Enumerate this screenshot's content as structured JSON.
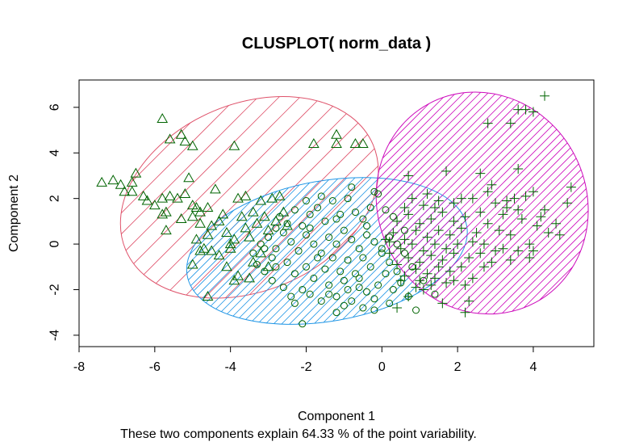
{
  "chart_data": {
    "type": "scatter",
    "title": "CLUSPLOT( norm_data )",
    "xlabel": "Component 1",
    "ylabel": "Component 2",
    "subtitle": "These two components explain 64.33 % of the point variability.",
    "xlim": [
      -8,
      5.6
    ],
    "ylim": [
      -4.5,
      7.2
    ],
    "xticks": [
      -8,
      -6,
      -4,
      -2,
      0,
      2,
      4
    ],
    "yticks": [
      -4,
      -2,
      0,
      2,
      4,
      6
    ],
    "grid": false,
    "point_color": "#006400",
    "clusters": [
      {
        "id": 1,
        "marker": "triangle",
        "ellipse_color": "#DF536B",
        "ellipse": {
          "cx": -3.5,
          "cy": 2.05,
          "rx": 3.55,
          "ry": 4.1,
          "angle_deg": 23
        },
        "points": [
          [
            -5.8,
            5.5
          ],
          [
            -5.6,
            4.6
          ],
          [
            -5.3,
            4.8
          ],
          [
            -5.2,
            4.5
          ],
          [
            -5.0,
            4.3
          ],
          [
            -3.9,
            4.3
          ],
          [
            -1.8,
            4.4
          ],
          [
            -1.2,
            4.8
          ],
          [
            -1.2,
            4.4
          ],
          [
            -0.7,
            4.4
          ],
          [
            -0.5,
            4.4
          ],
          [
            -7.4,
            2.7
          ],
          [
            -7.1,
            2.8
          ],
          [
            -6.9,
            2.6
          ],
          [
            -6.8,
            2.3
          ],
          [
            -6.5,
            3.1
          ],
          [
            -6.6,
            2.7
          ],
          [
            -6.6,
            2.3
          ],
          [
            -6.3,
            2.1
          ],
          [
            -6.2,
            1.9
          ],
          [
            -6.0,
            1.7
          ],
          [
            -5.8,
            2.0
          ],
          [
            -5.8,
            1.3
          ],
          [
            -5.6,
            2.1
          ],
          [
            -5.4,
            2.0
          ],
          [
            -5.2,
            2.2
          ],
          [
            -5.1,
            2.9
          ],
          [
            -5.0,
            1.7
          ],
          [
            -4.8,
            1.4
          ],
          [
            -4.6,
            1.6
          ],
          [
            -4.4,
            2.4
          ],
          [
            -5.7,
            0.6
          ],
          [
            -5.3,
            1.1
          ],
          [
            -5.0,
            1.2
          ],
          [
            -4.8,
            0.9
          ],
          [
            -4.6,
            0.4
          ],
          [
            -4.5,
            0.8
          ],
          [
            -4.3,
            1.0
          ],
          [
            -4.1,
            0.5
          ],
          [
            -4.0,
            0.0
          ],
          [
            -3.9,
            0.2
          ],
          [
            -3.8,
            2.0
          ],
          [
            -3.7,
            1.2
          ],
          [
            -3.6,
            0.7
          ],
          [
            -3.5,
            0.3
          ],
          [
            -3.4,
            1.4
          ],
          [
            -3.3,
            0.9
          ],
          [
            -3.2,
            1.9
          ],
          [
            -3.1,
            1.2
          ],
          [
            -3.0,
            0.6
          ],
          [
            -2.9,
            2.0
          ],
          [
            -2.8,
            1.0
          ],
          [
            -2.7,
            2.1
          ],
          [
            -2.6,
            1.4
          ],
          [
            -2.5,
            0.8
          ],
          [
            -4.9,
            0.2
          ],
          [
            -4.7,
            -0.2
          ],
          [
            -4.5,
            -0.3
          ],
          [
            -4.3,
            -0.5
          ],
          [
            -4.1,
            -1.0
          ],
          [
            -3.9,
            -1.6
          ],
          [
            -3.8,
            -1.4
          ],
          [
            -3.5,
            -1.5
          ],
          [
            -3.4,
            -0.8
          ],
          [
            -3.2,
            -0.4
          ],
          [
            -3.0,
            -1.0
          ],
          [
            -5.0,
            -0.9
          ],
          [
            -4.8,
            -0.3
          ],
          [
            -4.6,
            -2.3
          ],
          [
            -4.0,
            -0.2
          ],
          [
            -5.7,
            1.4
          ],
          [
            -4.9,
            1.6
          ],
          [
            -4.2,
            1.3
          ],
          [
            -3.6,
            2.1
          ]
        ]
      },
      {
        "id": 2,
        "marker": "circle",
        "ellipse_color": "#2297E6",
        "ellipse": {
          "cx": -1.45,
          "cy": -0.3,
          "rx": 3.75,
          "ry": 3.08,
          "angle_deg": 10
        },
        "points": [
          [
            -2.1,
            -3.5
          ],
          [
            -1.2,
            -3.0
          ],
          [
            -1.0,
            -2.7
          ],
          [
            -0.8,
            -2.5
          ],
          [
            -0.5,
            -2.8
          ],
          [
            -0.2,
            -2.9
          ],
          [
            0.2,
            -2.6
          ],
          [
            -2.3,
            -2.6
          ],
          [
            -1.9,
            -2.2
          ],
          [
            -1.6,
            -2.5
          ],
          [
            -1.4,
            -2.2
          ],
          [
            -1.2,
            -2.3
          ],
          [
            -0.9,
            -2.0
          ],
          [
            -0.6,
            -1.9
          ],
          [
            -0.4,
            -2.1
          ],
          [
            -0.1,
            -1.8
          ],
          [
            0.3,
            -2.0
          ],
          [
            0.5,
            -1.7
          ],
          [
            -2.6,
            -1.9
          ],
          [
            -2.9,
            -1.6
          ],
          [
            -3.1,
            -1.2
          ],
          [
            -2.8,
            -1.0
          ],
          [
            -2.5,
            -0.8
          ],
          [
            -2.3,
            -1.3
          ],
          [
            -2.0,
            -1.0
          ],
          [
            -1.8,
            -1.5
          ],
          [
            -1.5,
            -1.1
          ],
          [
            -1.3,
            -0.6
          ],
          [
            -1.1,
            -1.2
          ],
          [
            -0.9,
            -0.7
          ],
          [
            -0.7,
            -1.3
          ],
          [
            -0.5,
            -0.6
          ],
          [
            -0.3,
            -1.0
          ],
          [
            0.0,
            -0.4
          ],
          [
            0.2,
            -0.8
          ],
          [
            0.4,
            -1.2
          ],
          [
            -3.4,
            -0.4
          ],
          [
            -3.2,
            0.0
          ],
          [
            -3.0,
            0.3
          ],
          [
            -2.8,
            -0.2
          ],
          [
            -2.6,
            0.5
          ],
          [
            -2.4,
            0.1
          ],
          [
            -2.2,
            -0.3
          ],
          [
            -2.0,
            0.4
          ],
          [
            -1.8,
            0.0
          ],
          [
            -1.6,
            -0.4
          ],
          [
            -1.4,
            0.3
          ],
          [
            -1.2,
            0.0
          ],
          [
            -1.0,
            0.6
          ],
          [
            -0.8,
            0.2
          ],
          [
            -0.6,
            -0.2
          ],
          [
            -0.4,
            0.4
          ],
          [
            -0.2,
            0.1
          ],
          [
            0.0,
            -0.2
          ],
          [
            0.2,
            0.3
          ],
          [
            0.4,
            0.0
          ],
          [
            0.6,
            -0.4
          ],
          [
            -2.7,
            1.2
          ],
          [
            -2.5,
            0.9
          ],
          [
            -2.3,
            1.5
          ],
          [
            -2.1,
            0.8
          ],
          [
            -1.9,
            1.3
          ],
          [
            -1.7,
            1.6
          ],
          [
            -1.5,
            1.0
          ],
          [
            -1.3,
            1.9
          ],
          [
            -1.1,
            1.3
          ],
          [
            -0.9,
            2.0
          ],
          [
            -0.7,
            1.4
          ],
          [
            -0.5,
            1.1
          ],
          [
            -0.3,
            1.6
          ],
          [
            -0.1,
            2.2
          ],
          [
            0.1,
            1.5
          ],
          [
            0.3,
            1.2
          ],
          [
            -0.8,
            2.5
          ],
          [
            -0.2,
            2.3
          ],
          [
            -1.2,
            1.1
          ],
          [
            -0.6,
            -1.5
          ],
          [
            0.1,
            -1.3
          ],
          [
            -2.1,
            -2.0
          ],
          [
            -1.7,
            -0.6
          ],
          [
            -2.9,
            -0.6
          ],
          [
            -3.3,
            -0.9
          ],
          [
            -1.0,
            -1.6
          ],
          [
            0.7,
            -2.3
          ],
          [
            0.9,
            -2.9
          ],
          [
            -1.4,
            -1.8
          ],
          [
            -0.2,
            -2.4
          ],
          [
            -2.4,
            -2.3
          ],
          [
            -1.9,
            0.7
          ],
          [
            -0.4,
            0.8
          ],
          [
            0.6,
            0.6
          ],
          [
            -1.6,
            2.1
          ],
          [
            -2.0,
            1.9
          ],
          [
            -2.8,
            0.7
          ],
          [
            -3.1,
            -0.2
          ],
          [
            0.8,
            -1.0
          ],
          [
            1.1,
            -1.6
          ],
          [
            1.4,
            -2.2
          ]
        ]
      },
      {
        "id": 3,
        "marker": "plus",
        "ellipse_color": "#CD0BBC",
        "ellipse": {
          "cx": 2.65,
          "cy": 1.8,
          "rx": 2.75,
          "ry": 4.95,
          "angle_deg": 28
        },
        "points": [
          [
            4.3,
            6.5
          ],
          [
            3.8,
            5.9
          ],
          [
            4.0,
            5.8
          ],
          [
            3.6,
            5.9
          ],
          [
            2.8,
            5.3
          ],
          [
            3.4,
            5.3
          ],
          [
            3.6,
            3.3
          ],
          [
            2.6,
            3.1
          ],
          [
            1.7,
            3.2
          ],
          [
            0.7,
            3.0
          ],
          [
            5.0,
            2.5
          ],
          [
            4.9,
            1.8
          ],
          [
            1.2,
            2.2
          ],
          [
            2.1,
            2.0
          ],
          [
            2.8,
            2.3
          ],
          [
            3.5,
            2.0
          ],
          [
            4.0,
            2.3
          ],
          [
            4.3,
            1.5
          ],
          [
            4.4,
            0.5
          ],
          [
            3.9,
            0.0
          ],
          [
            4.0,
            -0.3
          ],
          [
            3.4,
            -0.7
          ],
          [
            3.6,
            -0.3
          ],
          [
            2.9,
            -0.8
          ],
          [
            2.4,
            -1.5
          ],
          [
            2.3,
            -2.5
          ],
          [
            2.2,
            -3.0
          ],
          [
            1.6,
            -2.6
          ],
          [
            1.3,
            -1.8
          ],
          [
            0.9,
            -1.9
          ],
          [
            0.7,
            -2.3
          ],
          [
            0.4,
            -2.8
          ],
          [
            3.0,
            1.8
          ],
          [
            3.3,
            1.6
          ],
          [
            3.7,
            1.1
          ],
          [
            3.2,
            1.3
          ],
          [
            2.6,
            1.4
          ],
          [
            2.2,
            1.2
          ],
          [
            1.9,
            1.0
          ],
          [
            1.6,
            1.4
          ],
          [
            1.3,
            1.1
          ],
          [
            1.0,
            0.9
          ],
          [
            0.7,
            1.3
          ],
          [
            0.4,
            1.0
          ],
          [
            2.8,
            0.9
          ],
          [
            3.1,
            0.6
          ],
          [
            3.4,
            0.4
          ],
          [
            2.5,
            0.5
          ],
          [
            2.1,
            0.7
          ],
          [
            1.8,
            0.4
          ],
          [
            1.5,
            0.6
          ],
          [
            1.2,
            0.3
          ],
          [
            0.9,
            0.6
          ],
          [
            0.6,
            0.2
          ],
          [
            0.3,
            0.5
          ],
          [
            2.7,
            0.0
          ],
          [
            2.4,
            0.1
          ],
          [
            2.0,
            0.0
          ],
          [
            1.7,
            -0.2
          ],
          [
            1.4,
            0.0
          ],
          [
            1.1,
            -0.3
          ],
          [
            0.8,
            0.0
          ],
          [
            0.5,
            -0.2
          ],
          [
            0.2,
            0.1
          ],
          [
            2.6,
            -0.4
          ],
          [
            2.3,
            -0.6
          ],
          [
            1.9,
            -0.4
          ],
          [
            1.6,
            -0.7
          ],
          [
            1.3,
            -0.5
          ],
          [
            1.0,
            -0.8
          ],
          [
            0.7,
            -0.6
          ],
          [
            0.4,
            -0.9
          ],
          [
            2.1,
            -1.0
          ],
          [
            1.8,
            -1.2
          ],
          [
            1.5,
            -1.0
          ],
          [
            1.2,
            -1.3
          ],
          [
            0.9,
            -1.1
          ],
          [
            0.6,
            -1.4
          ],
          [
            1.7,
            -1.7
          ],
          [
            1.4,
            -1.5
          ],
          [
            1.1,
            -2.0
          ],
          [
            3.0,
            -0.3
          ],
          [
            3.6,
            1.5
          ],
          [
            4.2,
            1.2
          ],
          [
            4.6,
            0.9
          ],
          [
            3.8,
            2.1
          ],
          [
            2.9,
            2.6
          ],
          [
            2.4,
            2.0
          ],
          [
            1.9,
            1.8
          ],
          [
            1.4,
            1.6
          ],
          [
            1.1,
            1.7
          ],
          [
            0.6,
            1.6
          ],
          [
            0.2,
            -0.4
          ],
          [
            0.1,
            0.2
          ],
          [
            0.8,
            2.0
          ],
          [
            1.5,
            1.9
          ],
          [
            3.3,
            1.9
          ],
          [
            4.1,
            0.8
          ],
          [
            4.7,
            0.4
          ],
          [
            3.9,
            -0.6
          ],
          [
            3.2,
            -0.2
          ],
          [
            2.7,
            -1.0
          ],
          [
            2.2,
            -1.8
          ],
          [
            1.9,
            -1.6
          ],
          [
            1.0,
            -1.6
          ],
          [
            0.5,
            -1.6
          ]
        ]
      }
    ]
  }
}
